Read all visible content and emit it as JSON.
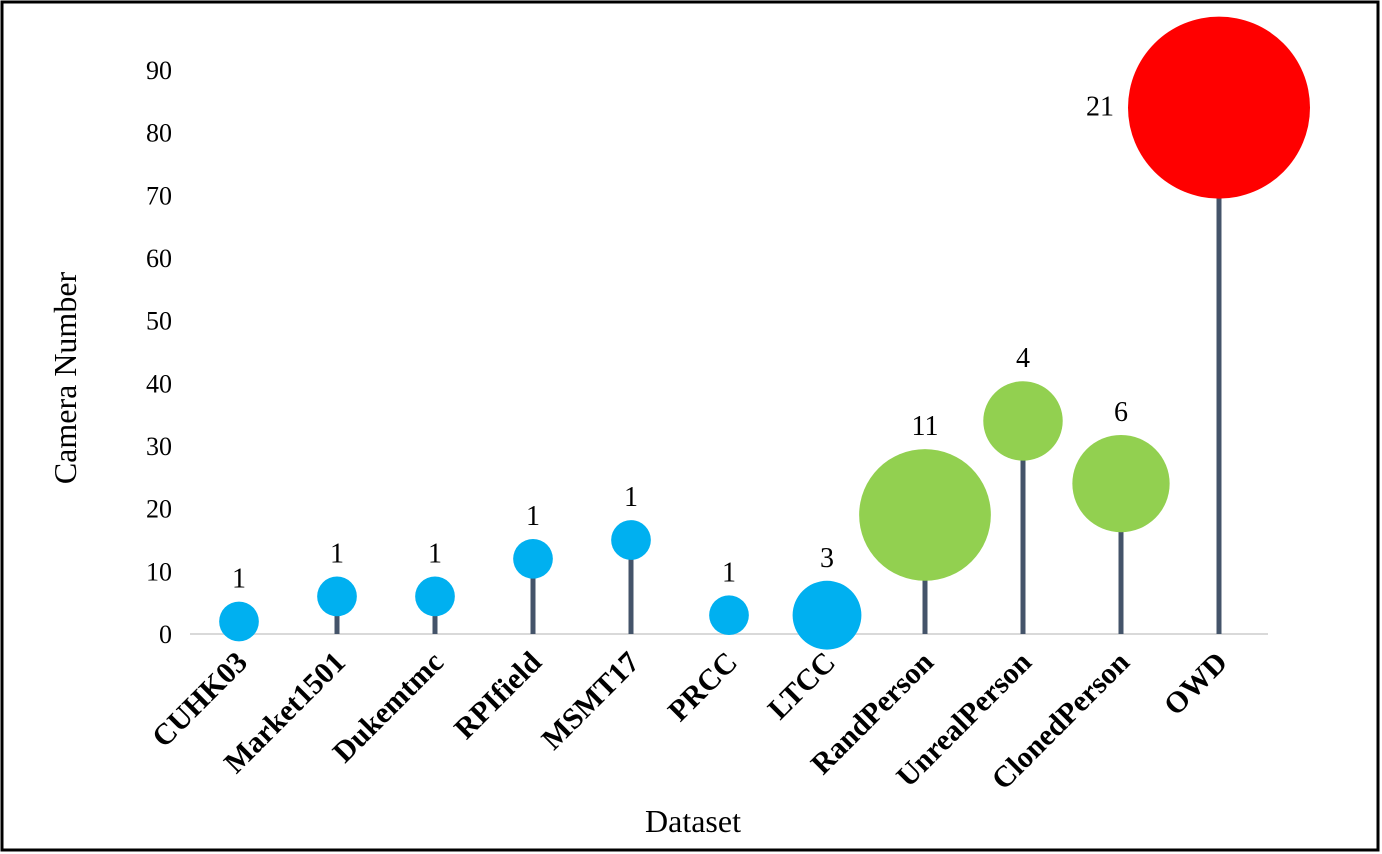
{
  "chart_data": {
    "type": "bubble-lollipop",
    "title": "",
    "xlabel": "Dataset",
    "ylabel": "Camera Number",
    "ylim": [
      0,
      90
    ],
    "yticks": [
      0,
      10,
      20,
      30,
      40,
      50,
      60,
      70,
      80,
      90
    ],
    "grid": false,
    "legend": "none",
    "categories": [
      "CUHK03",
      "Market1501",
      "Dukemtmc",
      "RPIfield",
      "MSMT17",
      "PRCC",
      "LTCC",
      "RandPerson",
      "UnrealPerson",
      "ClonedPerson",
      "OWD"
    ],
    "values": [
      2,
      6,
      6,
      12,
      15,
      3,
      3,
      19,
      34,
      24,
      84
    ],
    "bubble_labels": [
      "1",
      "1",
      "1",
      "1",
      "1",
      "1",
      "3",
      "11",
      "4",
      "6",
      "21"
    ],
    "bubble_sizes": [
      1,
      1,
      1,
      1,
      1,
      1,
      3,
      11,
      4,
      6,
      21
    ],
    "colors": [
      "#00b0f0",
      "#00b0f0",
      "#00b0f0",
      "#00b0f0",
      "#00b0f0",
      "#00b0f0",
      "#00b0f0",
      "#92d050",
      "#92d050",
      "#92d050",
      "#ff0000"
    ],
    "stem_color": "#44546a",
    "axis_color": "#d9d9d9"
  }
}
